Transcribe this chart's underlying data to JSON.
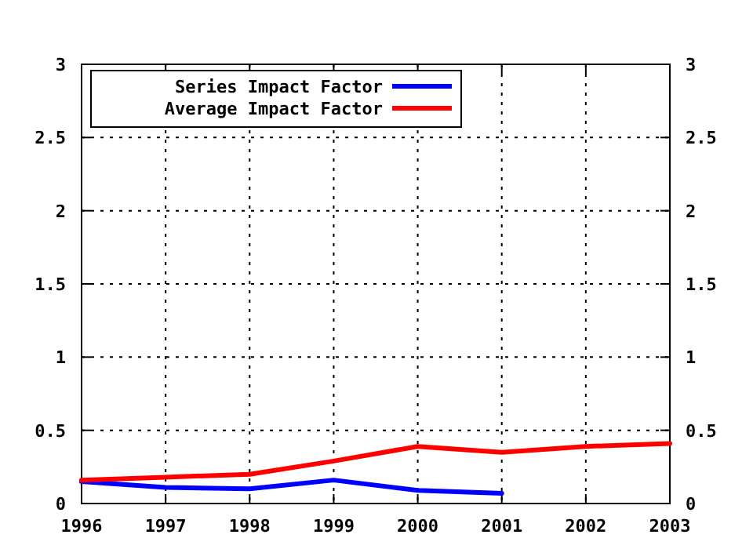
{
  "chart_data": {
    "type": "line",
    "x": [
      1996,
      1997,
      1998,
      1999,
      2000,
      2001,
      2002,
      2003
    ],
    "series": [
      {
        "name": "Series Impact Factor",
        "color": "#0000ff",
        "values": [
          0.15,
          0.11,
          0.1,
          0.16,
          0.09,
          0.07,
          null,
          null
        ]
      },
      {
        "name": "Average Impact Factor",
        "color": "#ff0000",
        "values": [
          0.16,
          0.18,
          0.2,
          0.29,
          0.39,
          0.35,
          0.39,
          0.41
        ]
      }
    ],
    "xlim": [
      1996,
      2003
    ],
    "xticks": [
      1996,
      1997,
      1998,
      1999,
      2000,
      2001,
      2002,
      2003
    ],
    "ylim": [
      0,
      3
    ],
    "yticks": [
      0,
      0.5,
      1,
      1.5,
      2,
      2.5,
      3
    ],
    "y2lim": [
      0,
      3
    ],
    "y2ticks": [
      0,
      0.5,
      1,
      1.5,
      2,
      2.5,
      3
    ],
    "grid": true,
    "legend": "top left",
    "line_style": "solid",
    "marker": "none"
  }
}
